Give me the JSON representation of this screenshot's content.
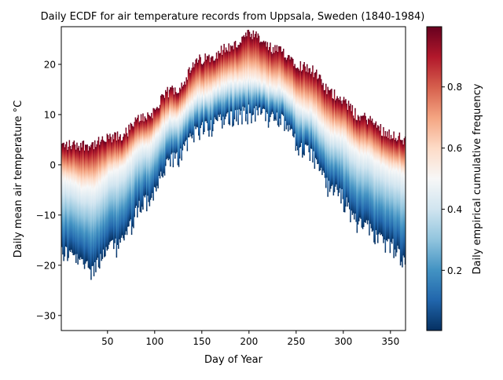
{
  "chart_data": {
    "type": "heatmap",
    "title": "Daily ECDF for air temperature records from Uppsala, Sweden (1840-1984)",
    "xlabel": "Day of Year",
    "ylabel": "Daily mean air temperature °C",
    "xlim": [
      1,
      366
    ],
    "ylim": [
      -33,
      27.5
    ],
    "xticks": [
      50,
      100,
      150,
      200,
      250,
      300,
      350
    ],
    "yticks": [
      -30,
      -20,
      -10,
      0,
      10,
      20
    ],
    "colormap": "RdBu_r",
    "colormap_stops": [
      "#053061",
      "#2166ac",
      "#4393c3",
      "#92c5de",
      "#d1e5f0",
      "#f7f7f7",
      "#fddbc7",
      "#f4a582",
      "#d6604d",
      "#b2182b",
      "#67001f"
    ],
    "colorbar": {
      "label": "Daily empirical cumulative frequency",
      "range": [
        0.003,
        0.997
      ],
      "ticks": [
        0.2,
        0.4,
        0.6,
        0.8
      ],
      "tick_labels": [
        "0.2",
        "0.4",
        "0.6",
        "0.8"
      ]
    },
    "profile": {
      "day": [
        1,
        30,
        60,
        90,
        120,
        150,
        180,
        200,
        230,
        260,
        290,
        320,
        350,
        366
      ],
      "min": [
        -17,
        -20,
        -15.6,
        -7,
        1.5,
        7.8,
        9.7,
        11,
        9.4,
        3,
        -4.7,
        -11.7,
        -15.6,
        -18.8
      ],
      "median": [
        -3,
        -4.7,
        -0.8,
        4,
        9.4,
        14,
        16.4,
        16.9,
        15.3,
        11,
        6.2,
        2.3,
        -0.8,
        -1.9
      ],
      "max": [
        3.9,
        4,
        5.5,
        9.7,
        15,
        21,
        23.4,
        25.8,
        22.7,
        19.5,
        14,
        9.4,
        6.2,
        4.7
      ]
    }
  }
}
